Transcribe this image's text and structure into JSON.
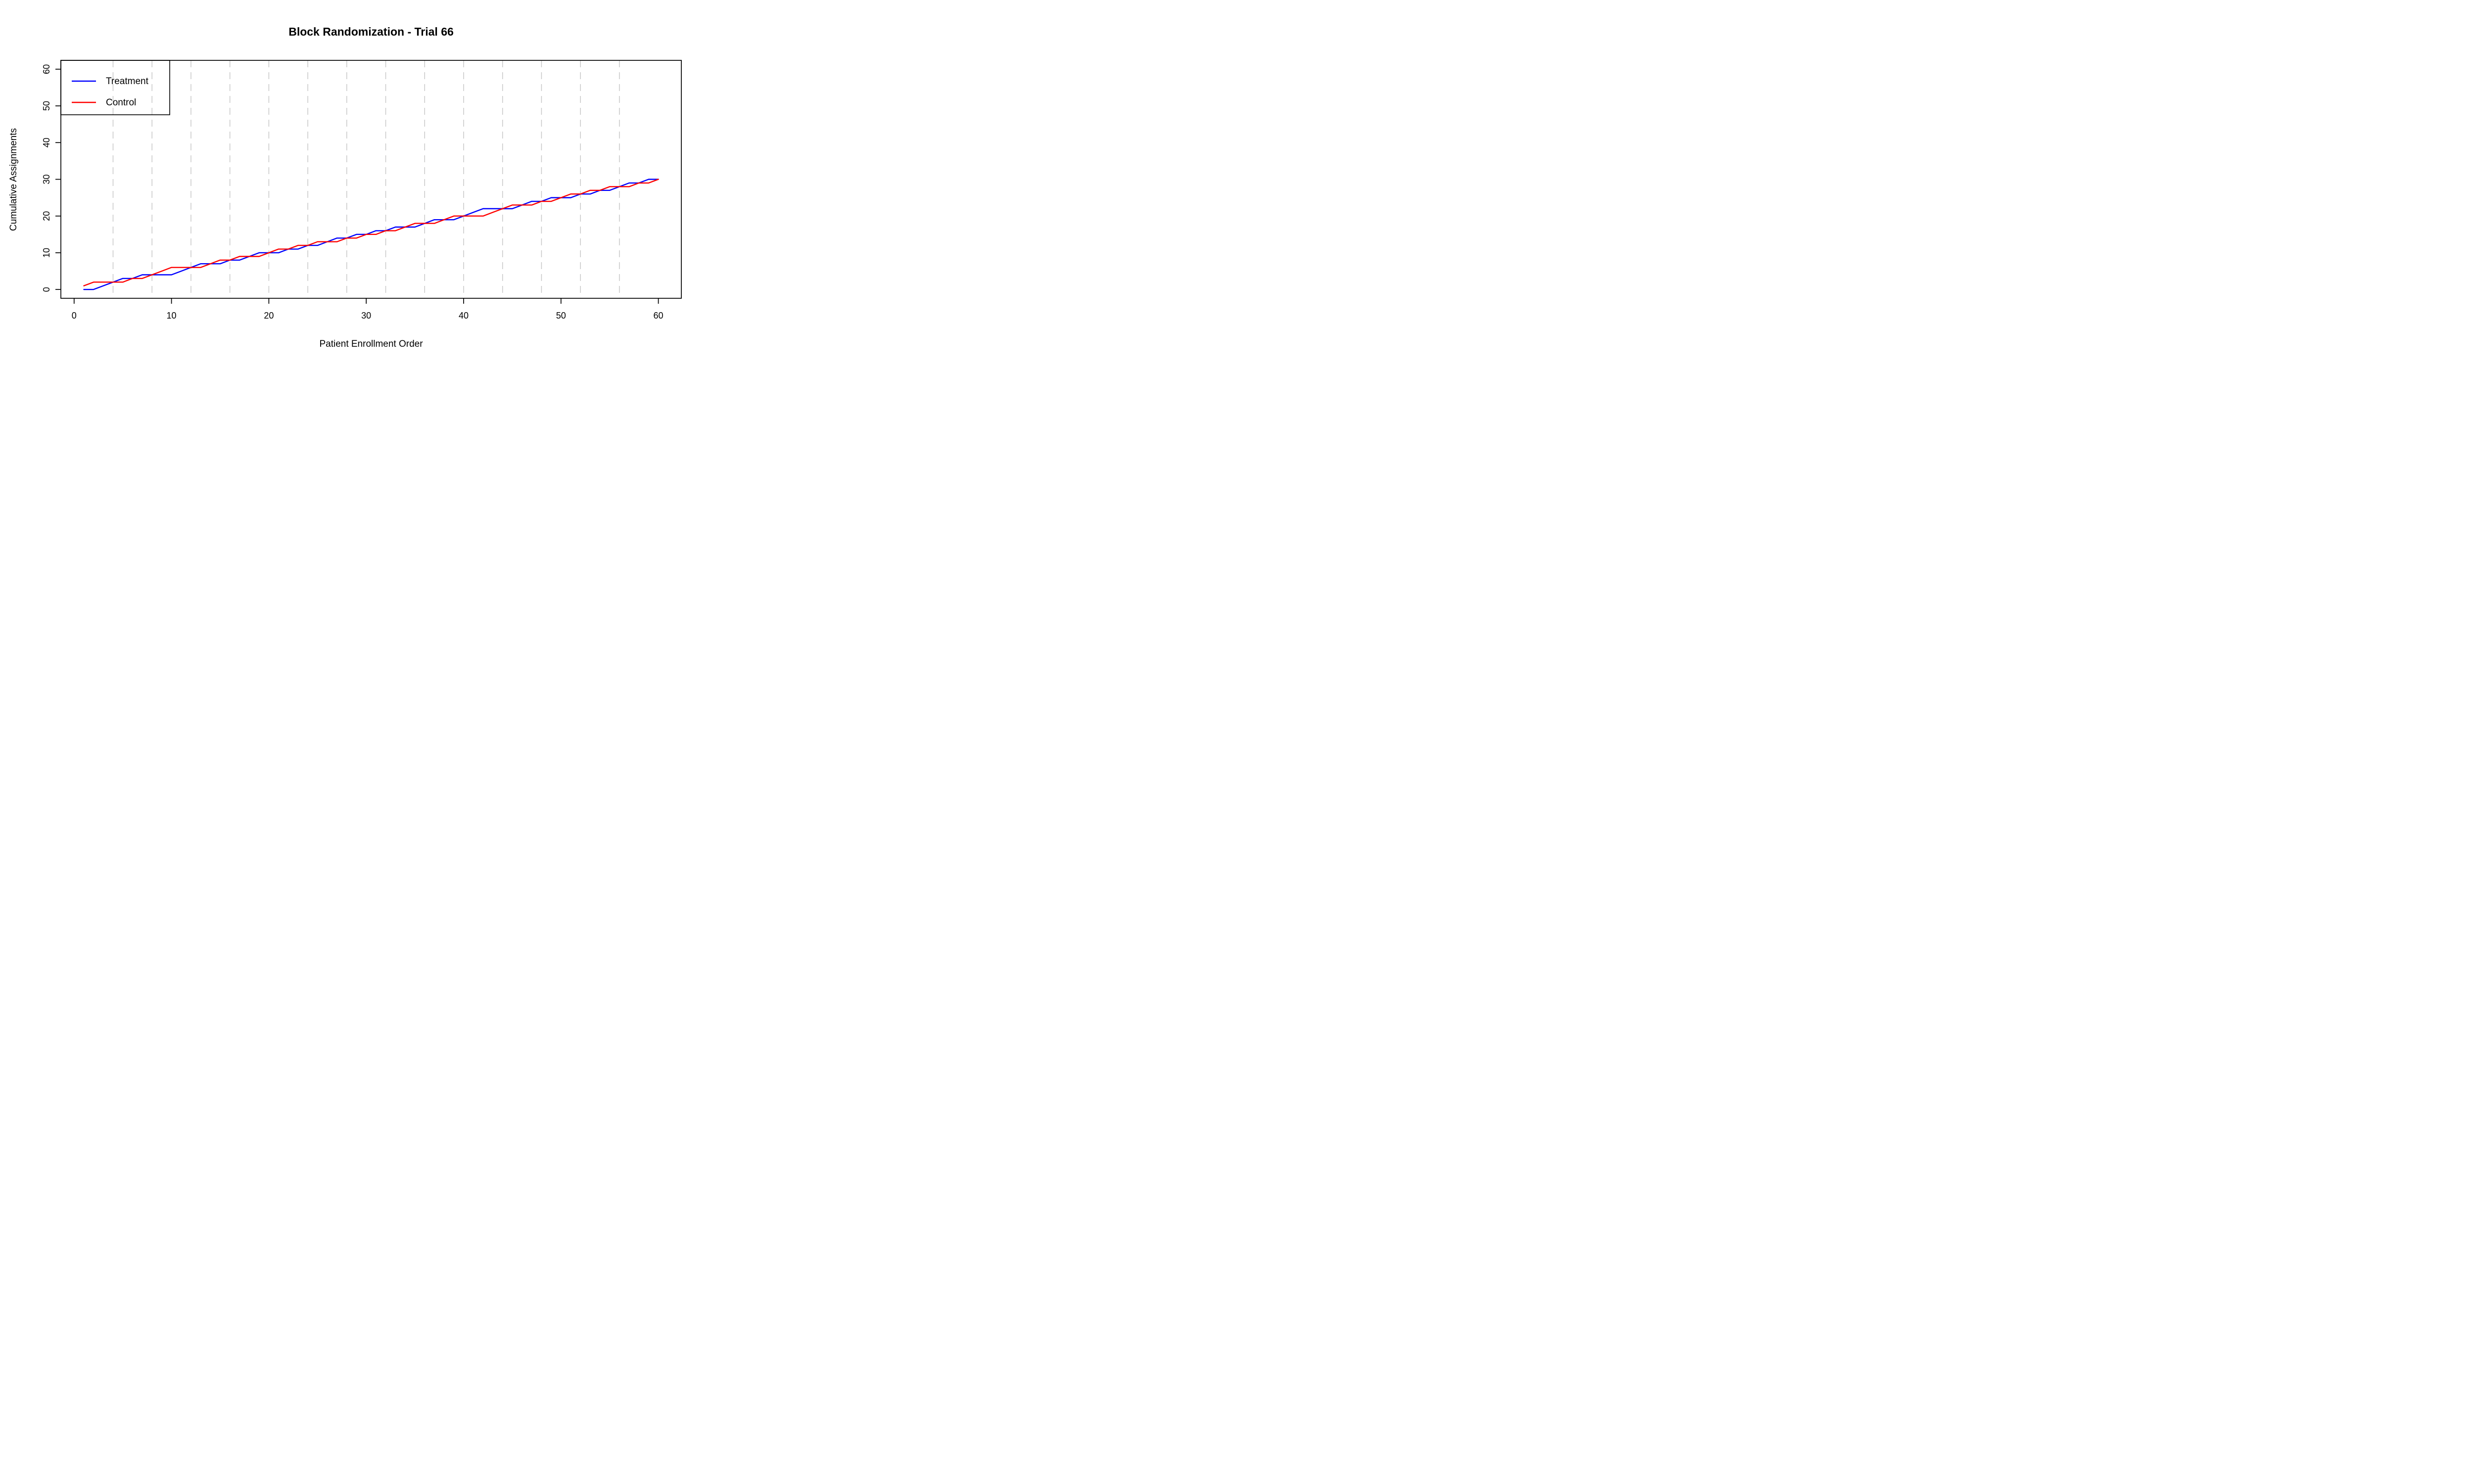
{
  "figure": {
    "background": "#FFFFFF",
    "text_color": "#000000"
  },
  "chart_data": {
    "type": "line",
    "title": "Block Randomization - Trial 66",
    "xlabel": "Patient Enrollment Order",
    "ylabel": "Cumulative Assignments",
    "xlim": [
      -1.36,
      62.36
    ],
    "ylim": [
      -2.4,
      62.4
    ],
    "x_ticks": [
      0,
      10,
      20,
      30,
      40,
      50,
      60
    ],
    "y_ticks": [
      0,
      10,
      20,
      30,
      40,
      50,
      60
    ],
    "grid": "vertical dashed lines at block boundaries only",
    "gridline_color": "#C8C8C8",
    "axis_color": "#000000",
    "block_size": 4,
    "block_boundaries": [
      4,
      8,
      12,
      16,
      20,
      24,
      28,
      32,
      36,
      40,
      44,
      48,
      52,
      56
    ],
    "x": [
      1,
      2,
      3,
      4,
      5,
      6,
      7,
      8,
      9,
      10,
      11,
      12,
      13,
      14,
      15,
      16,
      17,
      18,
      19,
      20,
      21,
      22,
      23,
      24,
      25,
      26,
      27,
      28,
      29,
      30,
      31,
      32,
      33,
      34,
      35,
      36,
      37,
      38,
      39,
      40,
      41,
      42,
      43,
      44,
      45,
      46,
      47,
      48,
      49,
      50,
      51,
      52,
      53,
      54,
      55,
      56,
      57,
      58,
      59,
      60
    ],
    "series": [
      {
        "name": "Treatment",
        "color": "#0000FF",
        "values": [
          0,
          0,
          1,
          2,
          3,
          3,
          4,
          4,
          4,
          4,
          5,
          6,
          7,
          7,
          7,
          8,
          8,
          9,
          10,
          10,
          10,
          11,
          11,
          12,
          12,
          13,
          14,
          14,
          15,
          15,
          16,
          16,
          17,
          17,
          17,
          18,
          19,
          19,
          19,
          20,
          21,
          22,
          22,
          22,
          22,
          23,
          24,
          24,
          25,
          25,
          25,
          26,
          26,
          27,
          27,
          28,
          29,
          29,
          30,
          30
        ]
      },
      {
        "name": "Control",
        "color": "#FF0000",
        "values": [
          1,
          2,
          2,
          2,
          2,
          3,
          3,
          4,
          5,
          6,
          6,
          6,
          6,
          7,
          8,
          8,
          9,
          9,
          9,
          10,
          11,
          11,
          12,
          12,
          13,
          13,
          13,
          14,
          14,
          15,
          15,
          16,
          16,
          17,
          18,
          18,
          18,
          19,
          20,
          20,
          20,
          20,
          21,
          22,
          23,
          23,
          23,
          24,
          24,
          25,
          26,
          26,
          27,
          27,
          28,
          28,
          28,
          29,
          29,
          30
        ]
      }
    ],
    "assignments": [
      "C",
      "C",
      "T",
      "T",
      "T",
      "C",
      "T",
      "C",
      "C",
      "C",
      "T",
      "T",
      "T",
      "C",
      "C",
      "T",
      "C",
      "T",
      "T",
      "C",
      "C",
      "T",
      "C",
      "T",
      "C",
      "T",
      "T",
      "C",
      "T",
      "C",
      "T",
      "C",
      "T",
      "C",
      "C",
      "T",
      "T",
      "C",
      "C",
      "T",
      "T",
      "T",
      "C",
      "C",
      "C",
      "T",
      "T",
      "C",
      "T",
      "C",
      "C",
      "T",
      "C",
      "T",
      "C",
      "T",
      "T",
      "C",
      "T",
      "C"
    ],
    "legend": {
      "position": "topleft",
      "entries": [
        "Treatment",
        "Control"
      ]
    }
  }
}
